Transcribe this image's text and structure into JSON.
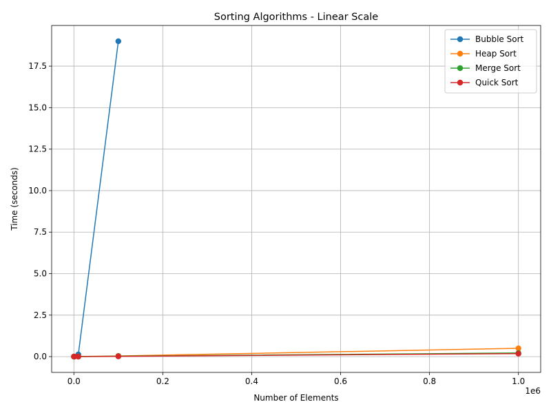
{
  "chart_data": {
    "type": "line",
    "title": "Sorting Algorithms - Linear Scale",
    "xlabel": "Number of Elements",
    "ylabel": "Time (seconds)",
    "x_offset_label": "1e6",
    "xlim": [
      -50000,
      1050000
    ],
    "ylim": [
      -0.95,
      19.95
    ],
    "x_ticks": [
      0,
      200000,
      400000,
      600000,
      800000,
      1000000
    ],
    "x_tick_labels": [
      "0.0",
      "0.2",
      "0.4",
      "0.6",
      "0.8",
      "1.0"
    ],
    "y_ticks": [
      0,
      2.5,
      5,
      7.5,
      10,
      12.5,
      15,
      17.5
    ],
    "y_tick_labels": [
      "0.0",
      "2.5",
      "5.0",
      "7.5",
      "10.0",
      "12.5",
      "15.0",
      "17.5"
    ],
    "grid": true,
    "legend_position": "top-right",
    "series": [
      {
        "name": "Bubble Sort",
        "color": "#1f77b4",
        "x": [
          100,
          1000,
          10000,
          100000
        ],
        "y": [
          0.0,
          0.002,
          0.13,
          19.0
        ]
      },
      {
        "name": "Heap Sort",
        "color": "#ff7f0e",
        "x": [
          100,
          1000,
          10000,
          100000,
          1000000
        ],
        "y": [
          0.0,
          0.001,
          0.004,
          0.04,
          0.5
        ]
      },
      {
        "name": "Merge Sort",
        "color": "#2ca02c",
        "x": [
          100,
          1000,
          10000,
          100000,
          1000000
        ],
        "y": [
          0.0,
          0.001,
          0.003,
          0.03,
          0.22
        ]
      },
      {
        "name": "Quick Sort",
        "color": "#d62728",
        "x": [
          100,
          1000,
          10000,
          100000,
          1000000
        ],
        "y": [
          0.0,
          0.0005,
          0.002,
          0.015,
          0.18
        ]
      }
    ]
  }
}
